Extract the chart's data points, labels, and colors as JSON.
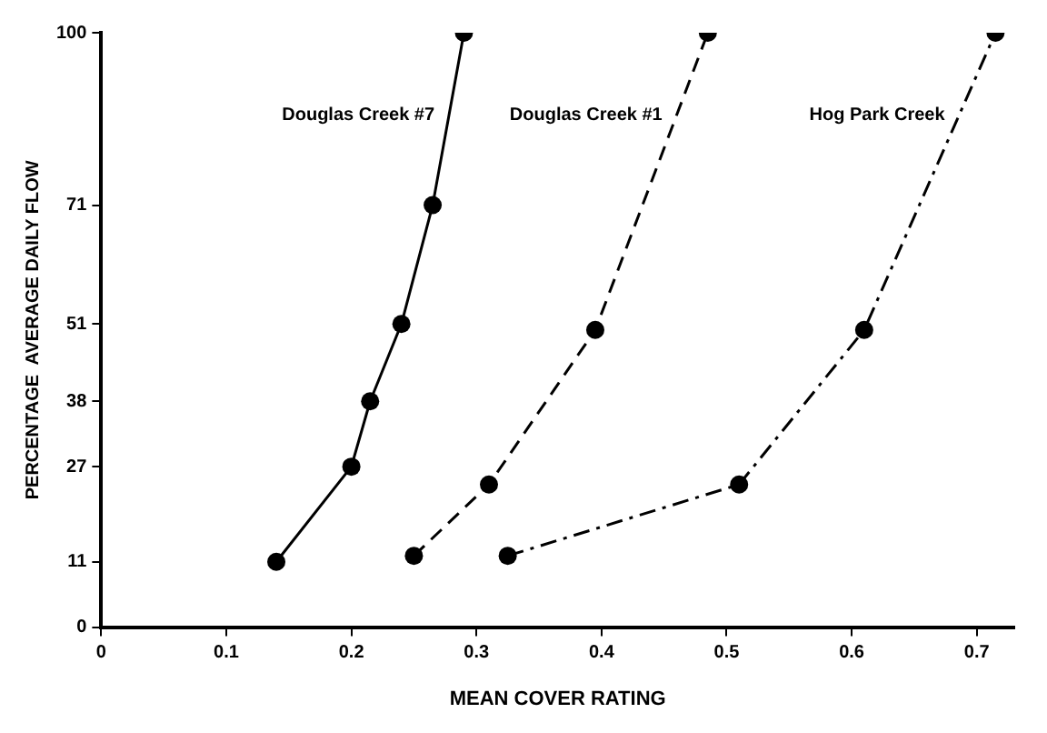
{
  "chart_data": {
    "type": "line",
    "xlabel": "MEAN COVER RATING",
    "ylabel": "PERCENTAGE  AVERAGE DAILY FLOW",
    "xlim": [
      0,
      0.73
    ],
    "xticks": [
      0,
      0.1,
      0.2,
      0.3,
      0.4,
      0.5,
      0.6,
      0.7
    ],
    "ylim": [
      0,
      100
    ],
    "yticks": [
      0,
      11,
      27,
      38,
      51,
      71,
      100
    ],
    "grid": false,
    "legend": false,
    "marker": "circle",
    "series": [
      {
        "name": "Douglas Creek #7",
        "color": "#000000",
        "line_style": "solid",
        "x": [
          0.14,
          0.2,
          0.215,
          0.24,
          0.265,
          0.29
        ],
        "values": [
          11,
          27,
          38,
          51,
          71,
          100
        ]
      },
      {
        "name": "Douglas Creek #1",
        "color": "#000000",
        "line_style": "dashed",
        "x": [
          0.25,
          0.31,
          0.395,
          0.485
        ],
        "values": [
          12,
          24,
          50,
          100
        ]
      },
      {
        "name": "Hog Park Creek",
        "color": "#000000",
        "line_style": "dashdot",
        "x": [
          0.325,
          0.51,
          0.61,
          0.715
        ],
        "values": [
          12,
          24,
          50,
          100
        ]
      }
    ]
  }
}
